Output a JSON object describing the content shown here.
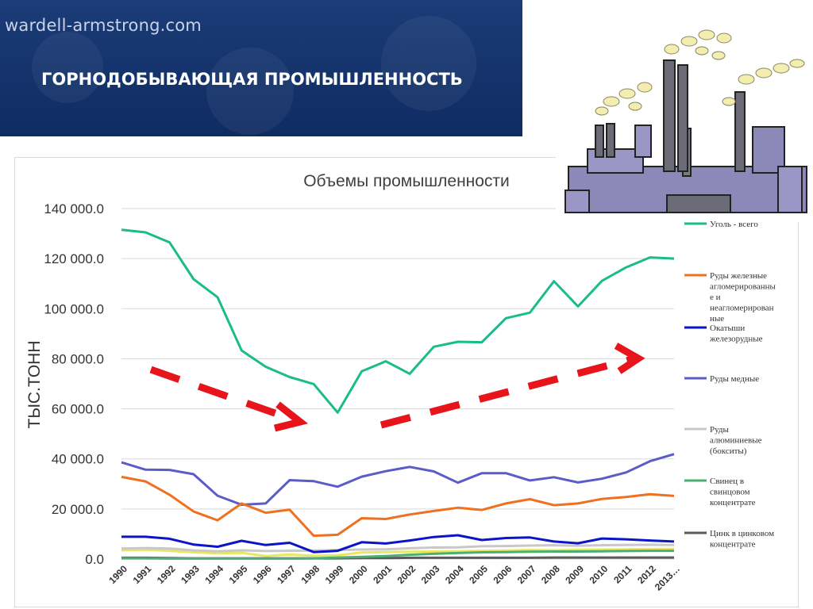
{
  "header": {
    "site": "wardell-armstrong.com",
    "title": "ГОРНОДОБЫВАЮЩАЯ ПРОМЫШЛЕННОСТЬ"
  },
  "chart_data": {
    "type": "line",
    "title": "Объемы промышленности",
    "ylabel": "тыс.тонн",
    "xlabel": "",
    "ylim": [
      0,
      140000
    ],
    "yticks": [
      "0.0",
      "20 000.0",
      "40 000.0",
      "60 000.0",
      "80 000.0",
      "100 000.0",
      "120 000.0",
      "140 000.0"
    ],
    "categories": [
      "1990",
      "1991",
      "1992",
      "1993",
      "1994",
      "1995",
      "1996",
      "1997",
      "1998",
      "1999",
      "2000",
      "2001",
      "2002",
      "2003",
      "2004",
      "2005",
      "2006",
      "2007",
      "2008",
      "2009",
      "2010",
      "2011",
      "2012",
      "2013…"
    ],
    "grid": true,
    "legend": "right",
    "series": [
      {
        "name": "Уголь - всего",
        "color": "#1abc8c",
        "values": [
          131500,
          130500,
          126500,
          111800,
          104600,
          83300,
          76800,
          72700,
          69900,
          58500,
          75000,
          79000,
          74000,
          84800,
          86800,
          86600,
          96200,
          98400,
          111000,
          100900,
          111100,
          116500,
          120500,
          120000
        ]
      },
      {
        "name": "Руды железные агломерированные и неагломерированные",
        "color": "#f07020",
        "values": [
          32800,
          31000,
          25700,
          19000,
          15500,
          22200,
          18500,
          19700,
          9300,
          9700,
          16300,
          16000,
          17800,
          19200,
          20500,
          19600,
          22200,
          23900,
          21500,
          22200,
          24000,
          24800,
          25900,
          25200
        ]
      },
      {
        "name": "Окатыши железорудные",
        "color": "#0a14c8",
        "values": [
          8900,
          8900,
          8100,
          5800,
          4900,
          7300,
          5600,
          6500,
          2800,
          3300,
          6700,
          6200,
          7400,
          8800,
          9500,
          7600,
          8400,
          8600,
          7000,
          6300,
          8200,
          7900,
          7400,
          7000
        ]
      },
      {
        "name": "Руды медные",
        "color": "#5c5cc8",
        "values": [
          38600,
          35700,
          35600,
          33900,
          25300,
          21700,
          22200,
          31500,
          31100,
          28900,
          32900,
          35100,
          36800,
          35000,
          30500,
          34300,
          34300,
          31400,
          32700,
          30600,
          32100,
          34600,
          39100,
          41900
        ]
      },
      {
        "name": "Руды алюминиевые (бокситы)",
        "color": "#c8c8c8",
        "values": [
          4200,
          4400,
          4200,
          3500,
          3100,
          3500,
          3200,
          3300,
          3400,
          3600,
          3800,
          3900,
          4300,
          4600,
          4700,
          5100,
          5200,
          5400,
          5500,
          5300,
          5500,
          5600,
          5700,
          5600
        ]
      },
      {
        "name": "Свинец в свинцовом концентрате",
        "color": "#4caf72",
        "values": [
          300,
          300,
          200,
          200,
          200,
          200,
          200,
          200,
          300,
          600,
          900,
          1200,
          1700,
          2100,
          2400,
          2700,
          2800,
          2900,
          3000,
          3000,
          3100,
          3200,
          3300,
          3300
        ]
      },
      {
        "name": "Цинк в цинковом концентрате",
        "color": "#5a5a5a",
        "values": [
          500,
          500,
          400,
          300,
          300,
          300,
          300,
          300,
          300,
          300,
          400,
          400,
          500,
          500,
          500,
          500,
          500,
          500,
          600,
          600,
          600,
          600,
          600,
          600
        ]
      },
      {
        "name": "",
        "color": "#e8e860",
        "values": [
          3500,
          3700,
          3300,
          2700,
          2300,
          2500,
          1200,
          1800,
          1300,
          1500,
          2600,
          2800,
          2900,
          3000,
          3100,
          3300,
          3400,
          3600,
          3500,
          3700,
          3800,
          3900,
          4000,
          4100
        ]
      }
    ]
  }
}
